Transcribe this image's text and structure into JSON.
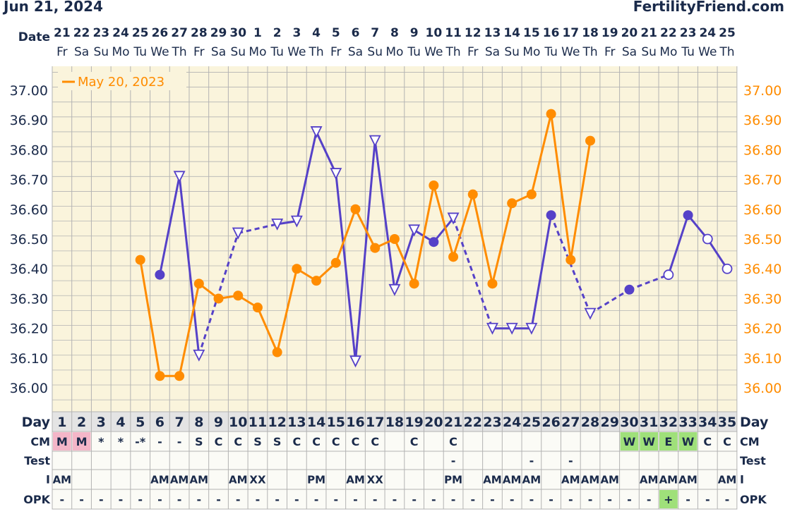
{
  "header": {
    "date": "Jun 21, 2024",
    "site": "FertilityFriend.com"
  },
  "colors": {
    "current": "#5541c8",
    "previous": "#ff8c00",
    "panel": "#faf4dc",
    "grid": "#b3b3b3",
    "label": "#1a2a4a",
    "green": "#9fe07a",
    "pink": "#f4b6c8"
  },
  "row_labels": {
    "date": "Date",
    "day": "Day",
    "cm": "CM",
    "test": "Test",
    "i": "I",
    "opk": "OPK"
  },
  "dates": [
    "21",
    "22",
    "23",
    "24",
    "25",
    "26",
    "27",
    "28",
    "29",
    "30",
    "1",
    "2",
    "3",
    "4",
    "5",
    "6",
    "7",
    "8",
    "9",
    "10",
    "11",
    "12",
    "13",
    "14",
    "15",
    "16",
    "17",
    "18",
    "19",
    "20",
    "21",
    "22",
    "23",
    "24",
    "25"
  ],
  "weekdays": [
    "Fr",
    "Sa",
    "Su",
    "Mo",
    "Tu",
    "We",
    "Th",
    "Fr",
    "Sa",
    "Su",
    "Mo",
    "Tu",
    "We",
    "Th",
    "Fr",
    "Sa",
    "Su",
    "Mo",
    "Tu",
    "We",
    "Th",
    "Fr",
    "Sa",
    "Su",
    "Mo",
    "Tu",
    "We",
    "Th",
    "Fr",
    "Sa",
    "Su",
    "Mo",
    "Tu",
    "We",
    "Th"
  ],
  "cycle_days": [
    "1",
    "2",
    "3",
    "4",
    "5",
    "6",
    "7",
    "8",
    "9",
    "10",
    "11",
    "12",
    "13",
    "14",
    "15",
    "16",
    "17",
    "18",
    "19",
    "20",
    "21",
    "22",
    "23",
    "24",
    "25",
    "26",
    "27",
    "28",
    "29",
    "30",
    "31",
    "32",
    "33",
    "34",
    "35"
  ],
  "cm": [
    "M",
    "M",
    "*",
    "*",
    "-*",
    "-",
    "-",
    "S",
    "C",
    "C",
    "S",
    "S",
    "C",
    "C",
    "C",
    "C",
    "C",
    "",
    "C",
    "",
    "C",
    "",
    "",
    "",
    "",
    "",
    "",
    "",
    "",
    "W",
    "W",
    "E",
    "W",
    "C",
    "C"
  ],
  "cm_highlight": [
    "pink",
    "pink",
    "",
    "",
    "",
    "",
    "",
    "",
    "",
    "",
    "",
    "",
    "",
    "",
    "",
    "",
    "",
    "",
    "",
    "",
    "",
    "",
    "",
    "",
    "",
    "",
    "",
    "",
    "",
    "green",
    "green",
    "green",
    "green",
    "",
    ""
  ],
  "test": [
    "",
    "",
    "",
    "",
    "",
    "",
    "",
    "",
    "",
    "",
    "",
    "",
    "",
    "",
    "",
    "",
    "",
    "",
    "",
    "",
    "-",
    "",
    "",
    "",
    "-",
    "",
    "-",
    "",
    "",
    "",
    "",
    "",
    "",
    "",
    ""
  ],
  "intercourse": [
    "AM",
    "",
    "",
    "",
    "",
    "AM",
    "AM",
    "AM",
    "",
    "AM",
    "XX",
    "",
    "",
    "PM",
    "",
    "AM",
    "XX",
    "",
    "",
    "",
    "PM",
    "",
    "AM",
    "AM",
    "AM",
    "",
    "AM",
    "AM",
    "AM",
    "",
    "AM",
    "AM",
    "AM",
    "",
    "AM"
  ],
  "opk": [
    "-",
    "-",
    "-",
    "-",
    "-",
    "-",
    "-",
    "-",
    "-",
    "-",
    "-",
    "-",
    "-",
    "-",
    "-",
    "-",
    "-",
    "-",
    "-",
    "-",
    "-",
    "-",
    "-",
    "-",
    "-",
    "-",
    "-",
    "-",
    "-",
    "-",
    "-",
    "+",
    "-",
    "-",
    "-"
  ],
  "opk_highlight": [
    "",
    "",
    "",
    "",
    "",
    "",
    "",
    "",
    "",
    "",
    "",
    "",
    "",
    "",
    "",
    "",
    "",
    "",
    "",
    "",
    "",
    "",
    "",
    "",
    "",
    "",
    "",
    "",
    "",
    "",
    "",
    "green",
    "",
    "",
    ""
  ],
  "chart_data": {
    "type": "line",
    "x": [
      1,
      2,
      3,
      4,
      5,
      6,
      7,
      8,
      9,
      10,
      11,
      12,
      13,
      14,
      15,
      16,
      17,
      18,
      19,
      20,
      21,
      22,
      23,
      24,
      25,
      26,
      27,
      28,
      29,
      30,
      31,
      32,
      33,
      34,
      35
    ],
    "ylim": [
      35.92,
      37.08
    ],
    "y_ticks": [
      "37.00",
      "36.90",
      "36.80",
      "36.70",
      "36.60",
      "36.50",
      "36.40",
      "36.30",
      "36.20",
      "36.10",
      "36.00"
    ],
    "legend": "May 20, 2023",
    "legend_position": "top-left",
    "grid": true,
    "series": [
      {
        "role": "current",
        "values": [
          null,
          null,
          null,
          null,
          null,
          36.38,
          36.71,
          36.11,
          null,
          36.52,
          null,
          36.55,
          36.56,
          36.86,
          36.72,
          36.09,
          36.83,
          36.33,
          36.53,
          36.49,
          36.57,
          null,
          36.2,
          36.2,
          36.2,
          36.58,
          null,
          36.25,
          null,
          36.33,
          null,
          36.38,
          36.58,
          36.5,
          36.4
        ],
        "markers": [
          "",
          "",
          "",
          "",
          "",
          "filled",
          "tri",
          "tri",
          "",
          "tri",
          "",
          "tri",
          "tri",
          "tri",
          "tri",
          "tri",
          "tri",
          "tri",
          "tri",
          "filled",
          "tri",
          "",
          "tri",
          "tri",
          "tri",
          "filled",
          "",
          "tri",
          "",
          "filled",
          "",
          "open",
          "filled",
          "open",
          "open"
        ]
      },
      {
        "role": "previous",
        "values": [
          null,
          null,
          null,
          null,
          36.43,
          36.04,
          36.04,
          36.35,
          36.3,
          36.31,
          36.27,
          36.12,
          36.4,
          36.36,
          36.42,
          36.6,
          36.47,
          36.5,
          36.35,
          36.68,
          36.44,
          36.65,
          36.35,
          36.62,
          36.65,
          36.92,
          36.43,
          36.83,
          null,
          null,
          null,
          null,
          null,
          null,
          null
        ]
      }
    ]
  }
}
